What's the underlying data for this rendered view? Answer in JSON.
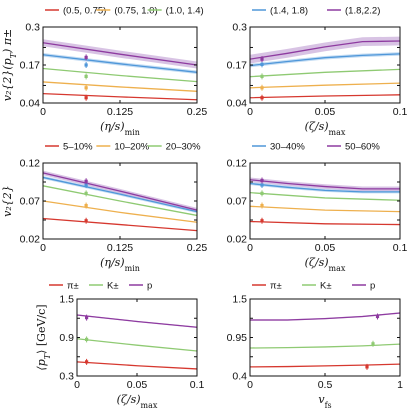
{
  "colors": {
    "red": "#d6382f",
    "orange": "#eeb04e",
    "green": "#8fca73",
    "blue": "#4f97d9",
    "purple": "#8e3ba0",
    "purple_band": "#c7a9d8",
    "blue_band": "#a9cdee",
    "frame": "#111111"
  },
  "chart_data": [
    {
      "id": "p1",
      "type": "line",
      "ylabel": "v₂{2}(p_T) π±",
      "xlabel": "(η/s)_min",
      "xlim": [
        0,
        0.25
      ],
      "ylim": [
        0.04,
        0.3
      ],
      "xticks": [
        0,
        0.125,
        0.25
      ],
      "xtick_labels": [
        "0",
        "0.125",
        "0.25"
      ],
      "yticks": [
        0.04,
        0.1,
        0.17,
        0.23,
        0.3
      ],
      "ytick_labels": [
        "0.04",
        "",
        "0.17",
        "",
        "0.3"
      ],
      "legend": [
        "(0.5, 0.75)",
        "(0.75, 1.0)",
        "(1.0, 1.4)"
      ],
      "series": [
        {
          "name": "(0.5, 0.75)",
          "color": "red",
          "x": [
            0,
            0.125,
            0.25
          ],
          "y": [
            0.072,
            0.061,
            0.051
          ],
          "band": 0
        },
        {
          "name": "(0.75, 1.0)",
          "color": "orange",
          "x": [
            0,
            0.125,
            0.25
          ],
          "y": [
            0.112,
            0.095,
            0.08
          ],
          "band": 0
        },
        {
          "name": "(1.0, 1.4)",
          "color": "green",
          "x": [
            0,
            0.125,
            0.25
          ],
          "y": [
            0.158,
            0.134,
            0.113
          ],
          "band": 0
        },
        {
          "name": "",
          "color": "blue",
          "x": [
            0,
            0.125,
            0.25
          ],
          "y": [
            0.205,
            0.174,
            0.145
          ],
          "band": 0.006
        },
        {
          "name": "",
          "color": "purple",
          "x": [
            0,
            0.125,
            0.25
          ],
          "y": [
            0.246,
            0.207,
            0.17
          ],
          "band": 0.012
        }
      ],
      "points": [
        {
          "x": 0.07,
          "y": 0.058,
          "color": "red"
        },
        {
          "x": 0.07,
          "y": 0.092,
          "color": "orange"
        },
        {
          "x": 0.07,
          "y": 0.131,
          "color": "green"
        },
        {
          "x": 0.07,
          "y": 0.17,
          "color": "blue"
        },
        {
          "x": 0.07,
          "y": 0.196,
          "color": "purple"
        }
      ]
    },
    {
      "id": "p2",
      "type": "line",
      "xlabel": "(ζ/s)_max",
      "xlim": [
        0,
        0.1
      ],
      "ylim": [
        0.04,
        0.3
      ],
      "xticks": [
        0,
        0.05,
        0.1
      ],
      "xtick_labels": [
        "0",
        "0.05",
        "0.1"
      ],
      "yticks": [
        0.04,
        0.1,
        0.17,
        0.23,
        0.3
      ],
      "ytick_labels": [
        "0.04",
        "",
        "0.17",
        "",
        "0.3"
      ],
      "legend": [
        "(1.4, 1.8)",
        "(1.8,2.2)"
      ],
      "series": [
        {
          "name": "",
          "color": "red",
          "x": [
            0,
            0.05,
            0.1
          ],
          "y": [
            0.058,
            0.064,
            0.068
          ],
          "band": 0
        },
        {
          "name": "",
          "color": "orange",
          "x": [
            0,
            0.05,
            0.1
          ],
          "y": [
            0.092,
            0.101,
            0.108
          ],
          "band": 0
        },
        {
          "name": "",
          "color": "green",
          "x": [
            0,
            0.05,
            0.1
          ],
          "y": [
            0.13,
            0.145,
            0.155
          ],
          "band": 0
        },
        {
          "name": "(1.4, 1.8)",
          "color": "blue",
          "x": [
            0,
            0.025,
            0.05,
            0.075,
            0.1
          ],
          "y": [
            0.168,
            0.182,
            0.195,
            0.203,
            0.208
          ],
          "band": 0.006
        },
        {
          "name": "(1.8,2.2)",
          "color": "purple",
          "x": [
            0,
            0.025,
            0.05,
            0.075,
            0.1
          ],
          "y": [
            0.19,
            0.21,
            0.232,
            0.25,
            0.252
          ],
          "band": 0.015
        }
      ],
      "points": [
        {
          "x": 0.008,
          "y": 0.058,
          "color": "red"
        },
        {
          "x": 0.008,
          "y": 0.092,
          "color": "orange"
        },
        {
          "x": 0.008,
          "y": 0.131,
          "color": "green"
        },
        {
          "x": 0.008,
          "y": 0.172,
          "color": "blue"
        },
        {
          "x": 0.008,
          "y": 0.19,
          "color": "purple"
        }
      ]
    },
    {
      "id": "p3",
      "type": "line",
      "ylabel": "v₂{2}",
      "xlabel": "(η/s)_min",
      "xlim": [
        0,
        0.25
      ],
      "ylim": [
        0.02,
        0.12
      ],
      "xticks": [
        0,
        0.125,
        0.25
      ],
      "xtick_labels": [
        "0",
        "0.125",
        "0.25"
      ],
      "yticks": [
        0.02,
        0.045,
        0.07,
        0.095,
        0.12
      ],
      "ytick_labels": [
        "0.02",
        "",
        "0.07",
        "",
        "0.12"
      ],
      "legend": [
        "5–10%",
        "10–20%",
        "20–30%"
      ],
      "series": [
        {
          "name": "5–10%",
          "color": "red",
          "x": [
            0,
            0.125,
            0.25
          ],
          "y": [
            0.047,
            0.039,
            0.031
          ],
          "band": 0
        },
        {
          "name": "10–20%",
          "color": "orange",
          "x": [
            0,
            0.125,
            0.25
          ],
          "y": [
            0.07,
            0.055,
            0.042
          ],
          "band": 0
        },
        {
          "name": "20–30%",
          "color": "green",
          "x": [
            0,
            0.125,
            0.25
          ],
          "y": [
            0.09,
            0.07,
            0.051
          ],
          "band": 0
        },
        {
          "name": "",
          "color": "blue",
          "x": [
            0,
            0.125,
            0.25
          ],
          "y": [
            0.101,
            0.079,
            0.056
          ],
          "band": 0.002
        },
        {
          "name": "",
          "color": "purple",
          "x": [
            0,
            0.125,
            0.25
          ],
          "y": [
            0.107,
            0.083,
            0.058
          ],
          "band": 0.003
        }
      ],
      "points": [
        {
          "x": 0.07,
          "y": 0.044,
          "color": "red"
        },
        {
          "x": 0.07,
          "y": 0.064,
          "color": "orange"
        },
        {
          "x": 0.07,
          "y": 0.08,
          "color": "green"
        },
        {
          "x": 0.07,
          "y": 0.091,
          "color": "blue"
        },
        {
          "x": 0.07,
          "y": 0.096,
          "color": "purple"
        }
      ]
    },
    {
      "id": "p4",
      "type": "line",
      "xlabel": "(ζ/s)_max",
      "xlim": [
        0,
        0.1
      ],
      "ylim": [
        0.02,
        0.12
      ],
      "xticks": [
        0,
        0.05,
        0.1
      ],
      "xtick_labels": [
        "0",
        "0.05",
        "0.1"
      ],
      "yticks": [
        0.02,
        0.045,
        0.07,
        0.095,
        0.12
      ],
      "ytick_labels": [
        "0.02",
        "",
        "0.07",
        "",
        "0.12"
      ],
      "legend": [
        "30–40%",
        "50–60%"
      ],
      "series": [
        {
          "name": "",
          "color": "red",
          "x": [
            0,
            0.05,
            0.1
          ],
          "y": [
            0.043,
            0.04,
            0.039
          ],
          "band": 0
        },
        {
          "name": "",
          "color": "orange",
          "x": [
            0,
            0.05,
            0.1
          ],
          "y": [
            0.063,
            0.058,
            0.056
          ],
          "band": 0
        },
        {
          "name": "",
          "color": "green",
          "x": [
            0,
            0.05,
            0.1
          ],
          "y": [
            0.081,
            0.074,
            0.071
          ],
          "band": 0
        },
        {
          "name": "30–40%",
          "color": "blue",
          "x": [
            0,
            0.025,
            0.05,
            0.075,
            0.1
          ],
          "y": [
            0.093,
            0.088,
            0.084,
            0.082,
            0.082
          ],
          "band": 0.002
        },
        {
          "name": "50–60%",
          "color": "purple",
          "x": [
            0,
            0.025,
            0.05,
            0.075,
            0.1
          ],
          "y": [
            0.098,
            0.093,
            0.089,
            0.086,
            0.086
          ],
          "band": 0.003
        }
      ],
      "points": [
        {
          "x": 0.008,
          "y": 0.044,
          "color": "red"
        },
        {
          "x": 0.008,
          "y": 0.064,
          "color": "orange"
        },
        {
          "x": 0.008,
          "y": 0.08,
          "color": "green"
        },
        {
          "x": 0.008,
          "y": 0.091,
          "color": "blue"
        },
        {
          "x": 0.008,
          "y": 0.097,
          "color": "purple"
        }
      ]
    },
    {
      "id": "p5",
      "type": "line",
      "ylabel": "⟨p_T⟩ [GeV/c]",
      "xlabel": "(ζ/s)_max",
      "xlim": [
        0,
        0.1
      ],
      "ylim": [
        0.3,
        1.5
      ],
      "xticks": [
        0,
        0.05,
        0.1
      ],
      "xtick_labels": [
        "0",
        "0.05",
        "0.1"
      ],
      "yticks": [
        0.3,
        0.6,
        0.9,
        1.2,
        1.5
      ],
      "ytick_labels": [
        "0.3",
        "",
        "0.9",
        "",
        "1.5"
      ],
      "legend": [
        "π±",
        "K±",
        "p"
      ],
      "series": [
        {
          "name": "π±",
          "color": "red",
          "x": [
            0,
            0.05,
            0.1
          ],
          "y": [
            0.52,
            0.46,
            0.41
          ],
          "band": 0
        },
        {
          "name": "K±",
          "color": "green",
          "x": [
            0,
            0.05,
            0.1
          ],
          "y": [
            0.88,
            0.78,
            0.69
          ],
          "band": 0
        },
        {
          "name": "p",
          "color": "purple",
          "x": [
            0,
            0.05,
            0.1
          ],
          "y": [
            1.25,
            1.15,
            1.06
          ],
          "band": 0.01
        }
      ],
      "points": [
        {
          "x": 0.008,
          "y": 0.52,
          "color": "red"
        },
        {
          "x": 0.008,
          "y": 0.87,
          "color": "green"
        },
        {
          "x": 0.008,
          "y": 1.21,
          "color": "purple"
        }
      ]
    },
    {
      "id": "p6",
      "type": "line",
      "xlabel": "v_fs",
      "xlim": [
        0,
        1
      ],
      "ylim": [
        0.4,
        1.5
      ],
      "xticks": [
        0,
        0.5,
        1
      ],
      "xtick_labels": [
        "0",
        "0.5",
        "1"
      ],
      "yticks": [
        0.4,
        0.675,
        0.95,
        1.225,
        1.5
      ],
      "ytick_labels": [
        "0.4",
        "",
        "0.95",
        "",
        "1.5"
      ],
      "legend": [
        "π±",
        "K±",
        "p"
      ],
      "series": [
        {
          "name": "π±",
          "color": "red",
          "x": [
            0,
            0.25,
            0.5,
            0.75,
            1
          ],
          "y": [
            0.53,
            0.535,
            0.545,
            0.555,
            0.57
          ],
          "band": 0
        },
        {
          "name": "K±",
          "color": "green",
          "x": [
            0,
            0.25,
            0.5,
            0.75,
            1
          ],
          "y": [
            0.8,
            0.805,
            0.815,
            0.83,
            0.855
          ],
          "band": 0
        },
        {
          "name": "p",
          "color": "purple",
          "x": [
            0,
            0.25,
            0.5,
            0.75,
            1
          ],
          "y": [
            1.2,
            1.2,
            1.22,
            1.25,
            1.3
          ],
          "band": 0.01
        }
      ],
      "points": [
        {
          "x": 0.78,
          "y": 0.53,
          "color": "red"
        },
        {
          "x": 0.82,
          "y": 0.86,
          "color": "green"
        },
        {
          "x": 0.85,
          "y": 1.25,
          "color": "purple"
        }
      ]
    }
  ]
}
